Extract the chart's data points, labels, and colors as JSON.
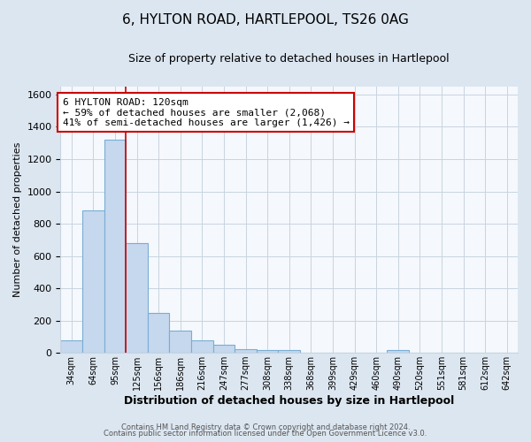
{
  "title": "6, HYLTON ROAD, HARTLEPOOL, TS26 0AG",
  "subtitle": "Size of property relative to detached houses in Hartlepool",
  "xlabel": "Distribution of detached houses by size in Hartlepool",
  "ylabel": "Number of detached properties",
  "categories": [
    "34sqm",
    "64sqm",
    "95sqm",
    "125sqm",
    "156sqm",
    "186sqm",
    "216sqm",
    "247sqm",
    "277sqm",
    "308sqm",
    "338sqm",
    "368sqm",
    "399sqm",
    "429sqm",
    "460sqm",
    "490sqm",
    "520sqm",
    "551sqm",
    "581sqm",
    "612sqm",
    "642sqm"
  ],
  "values": [
    80,
    880,
    1320,
    680,
    245,
    140,
    80,
    50,
    25,
    20,
    20,
    0,
    0,
    0,
    0,
    20,
    0,
    0,
    0,
    0,
    0
  ],
  "bar_color": "#c5d8ee",
  "bar_edge_color": "#7aadd4",
  "vline_color": "#cc0000",
  "vline_x_idx": 2.5,
  "annotation_text_line1": "6 HYLTON ROAD: 120sqm",
  "annotation_text_line2": "← 59% of detached houses are smaller (2,068)",
  "annotation_text_line3": "41% of semi-detached houses are larger (1,426) →",
  "annotation_box_color": "white",
  "annotation_box_edge_color": "#cc0000",
  "ylim": [
    0,
    1650
  ],
  "yticks": [
    0,
    200,
    400,
    600,
    800,
    1000,
    1200,
    1400,
    1600
  ],
  "footer1": "Contains HM Land Registry data © Crown copyright and database right 2024.",
  "footer2": "Contains public sector information licensed under the Open Government Licence v3.0.",
  "fig_bg_color": "#dce6f0",
  "plot_bg_color": "#f5f8fc",
  "grid_color": "#c8d4e0",
  "title_fontsize": 11,
  "subtitle_fontsize": 9,
  "xlabel_fontsize": 9,
  "ylabel_fontsize": 8,
  "tick_fontsize": 8,
  "annotation_fontsize": 8
}
